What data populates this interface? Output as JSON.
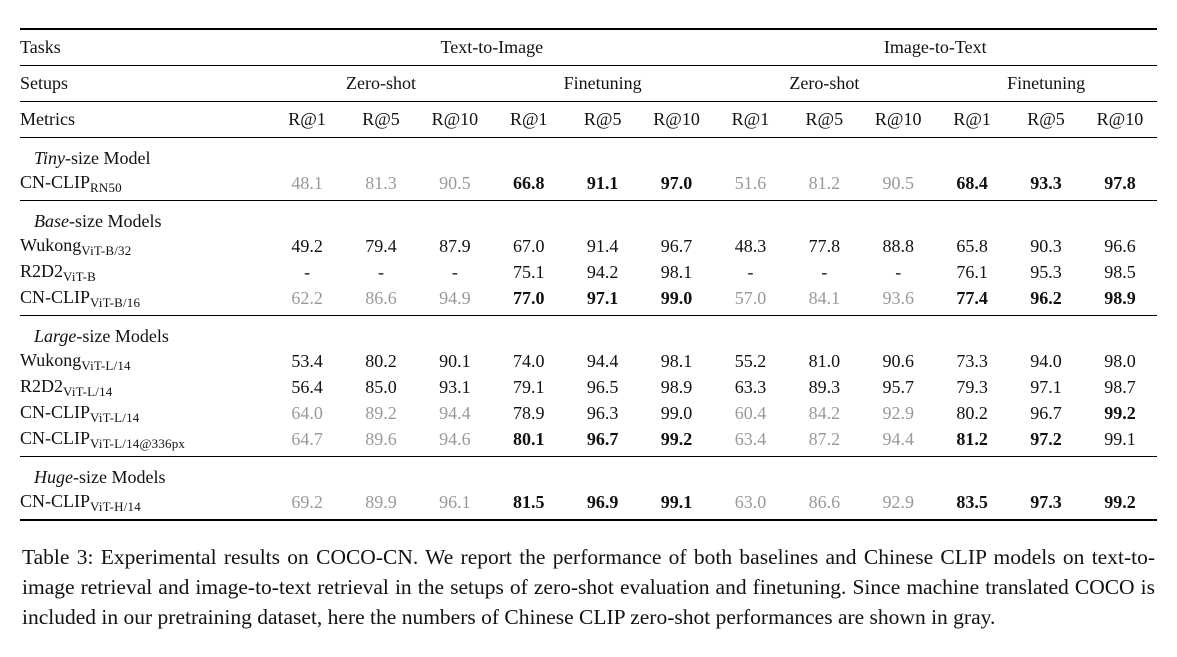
{
  "colors": {
    "text": "#111111",
    "gray_value": "#999999",
    "rule": "#000000",
    "background": "#ffffff"
  },
  "table": {
    "header": {
      "tasks_label": "Tasks",
      "setups_label": "Setups",
      "metrics_label": "Metrics",
      "task_groups": [
        "Text-to-Image",
        "Image-to-Text"
      ],
      "setups": [
        "Zero-shot",
        "Finetuning",
        "Zero-shot",
        "Finetuning"
      ],
      "metrics": [
        "R@1",
        "R@5",
        "R@10",
        "R@1",
        "R@5",
        "R@10",
        "R@1",
        "R@5",
        "R@10",
        "R@1",
        "R@5",
        "R@10"
      ]
    },
    "sections": [
      {
        "title_italic": "Tiny",
        "title_rest": "-size Model",
        "rows": [
          {
            "model": "CN-CLIP",
            "variant": "RN50",
            "cells": [
              {
                "v": "48.1",
                "s": "gray"
              },
              {
                "v": "81.3",
                "s": "gray"
              },
              {
                "v": "90.5",
                "s": "gray"
              },
              {
                "v": "66.8",
                "s": "bold"
              },
              {
                "v": "91.1",
                "s": "bold"
              },
              {
                "v": "97.0",
                "s": "bold"
              },
              {
                "v": "51.6",
                "s": "gray"
              },
              {
                "v": "81.2",
                "s": "gray"
              },
              {
                "v": "90.5",
                "s": "gray"
              },
              {
                "v": "68.4",
                "s": "bold"
              },
              {
                "v": "93.3",
                "s": "bold"
              },
              {
                "v": "97.8",
                "s": "bold"
              }
            ]
          }
        ]
      },
      {
        "title_italic": "Base",
        "title_rest": "-size Models",
        "rows": [
          {
            "model": "Wukong",
            "variant": "ViT-B/32",
            "cells": [
              {
                "v": "49.2",
                "s": "normal"
              },
              {
                "v": "79.4",
                "s": "normal"
              },
              {
                "v": "87.9",
                "s": "normal"
              },
              {
                "v": "67.0",
                "s": "normal"
              },
              {
                "v": "91.4",
                "s": "normal"
              },
              {
                "v": "96.7",
                "s": "normal"
              },
              {
                "v": "48.3",
                "s": "normal"
              },
              {
                "v": "77.8",
                "s": "normal"
              },
              {
                "v": "88.8",
                "s": "normal"
              },
              {
                "v": "65.8",
                "s": "normal"
              },
              {
                "v": "90.3",
                "s": "normal"
              },
              {
                "v": "96.6",
                "s": "normal"
              }
            ]
          },
          {
            "model": "R2D2",
            "variant": "ViT-B",
            "cells": [
              {
                "v": "-",
                "s": "normal"
              },
              {
                "v": "-",
                "s": "normal"
              },
              {
                "v": "-",
                "s": "normal"
              },
              {
                "v": "75.1",
                "s": "normal"
              },
              {
                "v": "94.2",
                "s": "normal"
              },
              {
                "v": "98.1",
                "s": "normal"
              },
              {
                "v": "-",
                "s": "normal"
              },
              {
                "v": "-",
                "s": "normal"
              },
              {
                "v": "-",
                "s": "normal"
              },
              {
                "v": "76.1",
                "s": "normal"
              },
              {
                "v": "95.3",
                "s": "normal"
              },
              {
                "v": "98.5",
                "s": "normal"
              }
            ]
          },
          {
            "model": "CN-CLIP",
            "variant": "ViT-B/16",
            "cells": [
              {
                "v": "62.2",
                "s": "gray"
              },
              {
                "v": "86.6",
                "s": "gray"
              },
              {
                "v": "94.9",
                "s": "gray"
              },
              {
                "v": "77.0",
                "s": "bold"
              },
              {
                "v": "97.1",
                "s": "bold"
              },
              {
                "v": "99.0",
                "s": "bold"
              },
              {
                "v": "57.0",
                "s": "gray"
              },
              {
                "v": "84.1",
                "s": "gray"
              },
              {
                "v": "93.6",
                "s": "gray"
              },
              {
                "v": "77.4",
                "s": "bold"
              },
              {
                "v": "96.2",
                "s": "bold"
              },
              {
                "v": "98.9",
                "s": "bold"
              }
            ]
          }
        ]
      },
      {
        "title_italic": "Large",
        "title_rest": "-size Models",
        "rows": [
          {
            "model": "Wukong",
            "variant": "ViT-L/14",
            "cells": [
              {
                "v": "53.4",
                "s": "normal"
              },
              {
                "v": "80.2",
                "s": "normal"
              },
              {
                "v": "90.1",
                "s": "normal"
              },
              {
                "v": "74.0",
                "s": "normal"
              },
              {
                "v": "94.4",
                "s": "normal"
              },
              {
                "v": "98.1",
                "s": "normal"
              },
              {
                "v": "55.2",
                "s": "normal"
              },
              {
                "v": "81.0",
                "s": "normal"
              },
              {
                "v": "90.6",
                "s": "normal"
              },
              {
                "v": "73.3",
                "s": "normal"
              },
              {
                "v": "94.0",
                "s": "normal"
              },
              {
                "v": "98.0",
                "s": "normal"
              }
            ]
          },
          {
            "model": "R2D2",
            "variant": "ViT-L/14",
            "cells": [
              {
                "v": "56.4",
                "s": "normal"
              },
              {
                "v": "85.0",
                "s": "normal"
              },
              {
                "v": "93.1",
                "s": "normal"
              },
              {
                "v": "79.1",
                "s": "normal"
              },
              {
                "v": "96.5",
                "s": "normal"
              },
              {
                "v": "98.9",
                "s": "normal"
              },
              {
                "v": "63.3",
                "s": "normal"
              },
              {
                "v": "89.3",
                "s": "normal"
              },
              {
                "v": "95.7",
                "s": "normal"
              },
              {
                "v": "79.3",
                "s": "normal"
              },
              {
                "v": "97.1",
                "s": "normal"
              },
              {
                "v": "98.7",
                "s": "normal"
              }
            ]
          },
          {
            "model": "CN-CLIP",
            "variant": "ViT-L/14",
            "cells": [
              {
                "v": "64.0",
                "s": "gray"
              },
              {
                "v": "89.2",
                "s": "gray"
              },
              {
                "v": "94.4",
                "s": "gray"
              },
              {
                "v": "78.9",
                "s": "normal"
              },
              {
                "v": "96.3",
                "s": "normal"
              },
              {
                "v": "99.0",
                "s": "normal"
              },
              {
                "v": "60.4",
                "s": "gray"
              },
              {
                "v": "84.2",
                "s": "gray"
              },
              {
                "v": "92.9",
                "s": "gray"
              },
              {
                "v": "80.2",
                "s": "normal"
              },
              {
                "v": "96.7",
                "s": "normal"
              },
              {
                "v": "99.2",
                "s": "bold"
              }
            ]
          },
          {
            "model": "CN-CLIP",
            "variant": "ViT-L/14@336px",
            "cells": [
              {
                "v": "64.7",
                "s": "gray"
              },
              {
                "v": "89.6",
                "s": "gray"
              },
              {
                "v": "94.6",
                "s": "gray"
              },
              {
                "v": "80.1",
                "s": "bold"
              },
              {
                "v": "96.7",
                "s": "bold"
              },
              {
                "v": "99.2",
                "s": "bold"
              },
              {
                "v": "63.4",
                "s": "gray"
              },
              {
                "v": "87.2",
                "s": "gray"
              },
              {
                "v": "94.4",
                "s": "gray"
              },
              {
                "v": "81.2",
                "s": "bold"
              },
              {
                "v": "97.2",
                "s": "bold"
              },
              {
                "v": "99.1",
                "s": "normal"
              }
            ]
          }
        ]
      },
      {
        "title_italic": "Huge",
        "title_rest": "-size Models",
        "rows": [
          {
            "model": "CN-CLIP",
            "variant": "ViT-H/14",
            "cells": [
              {
                "v": "69.2",
                "s": "gray"
              },
              {
                "v": "89.9",
                "s": "gray"
              },
              {
                "v": "96.1",
                "s": "gray"
              },
              {
                "v": "81.5",
                "s": "bold"
              },
              {
                "v": "96.9",
                "s": "bold"
              },
              {
                "v": "99.1",
                "s": "bold"
              },
              {
                "v": "63.0",
                "s": "gray"
              },
              {
                "v": "86.6",
                "s": "gray"
              },
              {
                "v": "92.9",
                "s": "gray"
              },
              {
                "v": "83.5",
                "s": "bold"
              },
              {
                "v": "97.3",
                "s": "bold"
              },
              {
                "v": "99.2",
                "s": "bold"
              }
            ]
          }
        ]
      }
    ]
  },
  "caption": {
    "text": "Table 3: Experimental results on COCO-CN. We report the performance of both baselines and Chinese CLIP models on text-to-image retrieval and image-to-text retrieval in the setups of zero-shot evaluation and finetuning. Since machine translated COCO is included in our pretraining dataset, here the numbers of Chinese CLIP zero-shot performances are shown in gray."
  }
}
